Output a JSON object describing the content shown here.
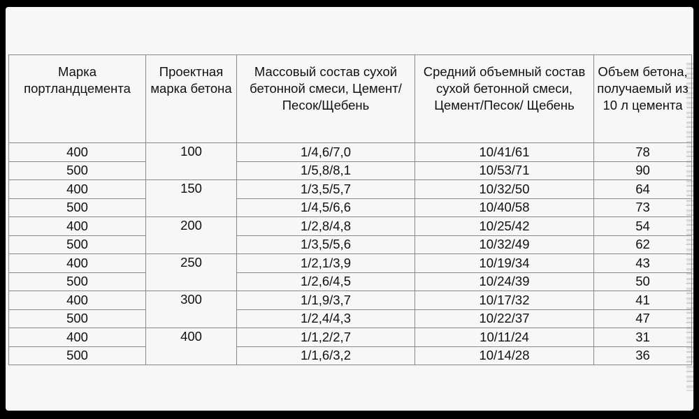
{
  "table": {
    "headers": [
      "Марка портландцемента",
      "Проектная марка бетона",
      "Массовый состав сухой бетонной смеси, Цемент/Песок/Щебень",
      "Средний объемный состав сухой бетонной смеси, Цемент/Песок/ Щебень",
      "Объем бетона, получаемый из 10 л цемента"
    ],
    "groups": [
      {
        "grade": "100",
        "rows": [
          [
            "400",
            "1/4,6/7,0",
            "10/41/61",
            "78"
          ],
          [
            "500",
            "1/5,8/8,1",
            "10/53/71",
            "90"
          ]
        ]
      },
      {
        "grade": "150",
        "rows": [
          [
            "400",
            "1/3,5/5,7",
            "10/32/50",
            "64"
          ],
          [
            "500",
            "1/4,5/6,6",
            "10/40/58",
            "73"
          ]
        ]
      },
      {
        "grade": "200",
        "rows": [
          [
            "400",
            "1/2,8/4,8",
            "10/25/42",
            "54"
          ],
          [
            "500",
            "1/3,5/5,6",
            "10/32/49",
            "62"
          ]
        ]
      },
      {
        "grade": "250",
        "rows": [
          [
            "400",
            "1/2,1/3,9",
            "10/19/34",
            "43"
          ],
          [
            "500",
            "1/2,6/4,5",
            "10/24/39",
            "50"
          ]
        ]
      },
      {
        "grade": "300",
        "rows": [
          [
            "400",
            "1/1,9/3,7",
            "10/17/32",
            "41"
          ],
          [
            "500",
            "1/2,4/4,3",
            "10/22/37",
            "47"
          ]
        ]
      },
      {
        "grade": "400",
        "rows": [
          [
            "400",
            "1/1,2/2,7",
            "10/11/24",
            "31"
          ],
          [
            "500",
            "1/1,6/3,2",
            "10/14/28",
            "36"
          ]
        ]
      }
    ]
  }
}
